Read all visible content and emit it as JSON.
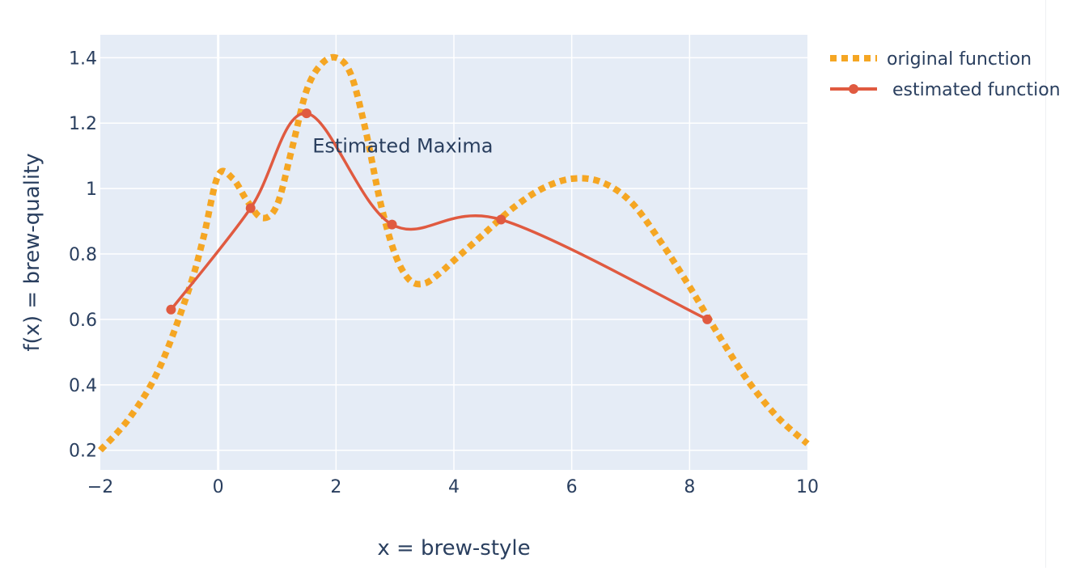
{
  "chart_data": {
    "type": "line",
    "xlabel": "x = brew-style",
    "ylabel": "f(x) = brew-quality",
    "xlim": [
      -2,
      10
    ],
    "ylim": [
      0.14,
      1.47
    ],
    "xticks": [
      -2,
      0,
      2,
      4,
      6,
      8,
      10
    ],
    "xtick_labels": [
      "−2",
      "0",
      "2",
      "4",
      "6",
      "8",
      "10"
    ],
    "yticks": [
      0.2,
      0.4,
      0.6,
      0.8,
      1,
      1.2,
      1.4
    ],
    "ytick_labels": [
      "0.2",
      "0.4",
      "0.6",
      "0.8",
      "1",
      "1.2",
      "1.4"
    ],
    "grid": true,
    "legend_position": "top-right outside",
    "series": [
      {
        "name": "original function",
        "style": "dotted",
        "color": "#f5a623",
        "x": [
          -2,
          -1.5,
          -1,
          -0.5,
          -0.25,
          0,
          0.25,
          0.5,
          0.75,
          1,
          1.25,
          1.5,
          1.75,
          2,
          2.25,
          2.5,
          2.75,
          3,
          3.25,
          3.5,
          3.75,
          4,
          4.5,
          5,
          5.5,
          6,
          6.5,
          7,
          7.5,
          8,
          8.5,
          9,
          9.5,
          10
        ],
        "y": [
          0.2,
          0.3,
          0.45,
          0.69,
          0.85,
          1.04,
          1.03,
          0.96,
          0.91,
          0.95,
          1.12,
          1.3,
          1.38,
          1.4,
          1.35,
          1.18,
          0.96,
          0.8,
          0.72,
          0.71,
          0.74,
          0.78,
          0.86,
          0.94,
          1.0,
          1.03,
          1.02,
          0.96,
          0.84,
          0.7,
          0.55,
          0.41,
          0.3,
          0.22
        ]
      },
      {
        "name": " estimated function",
        "style": "solid+markers",
        "color": "#e05a40",
        "x": [
          -0.8,
          0.55,
          1.5,
          2.95,
          4.8,
          8.3
        ],
        "y": [
          0.63,
          0.94,
          1.23,
          0.89,
          0.905,
          0.6
        ]
      }
    ],
    "annotations": [
      {
        "text": "Estimated Maxima",
        "x": 1.6,
        "y": 1.13
      }
    ]
  }
}
